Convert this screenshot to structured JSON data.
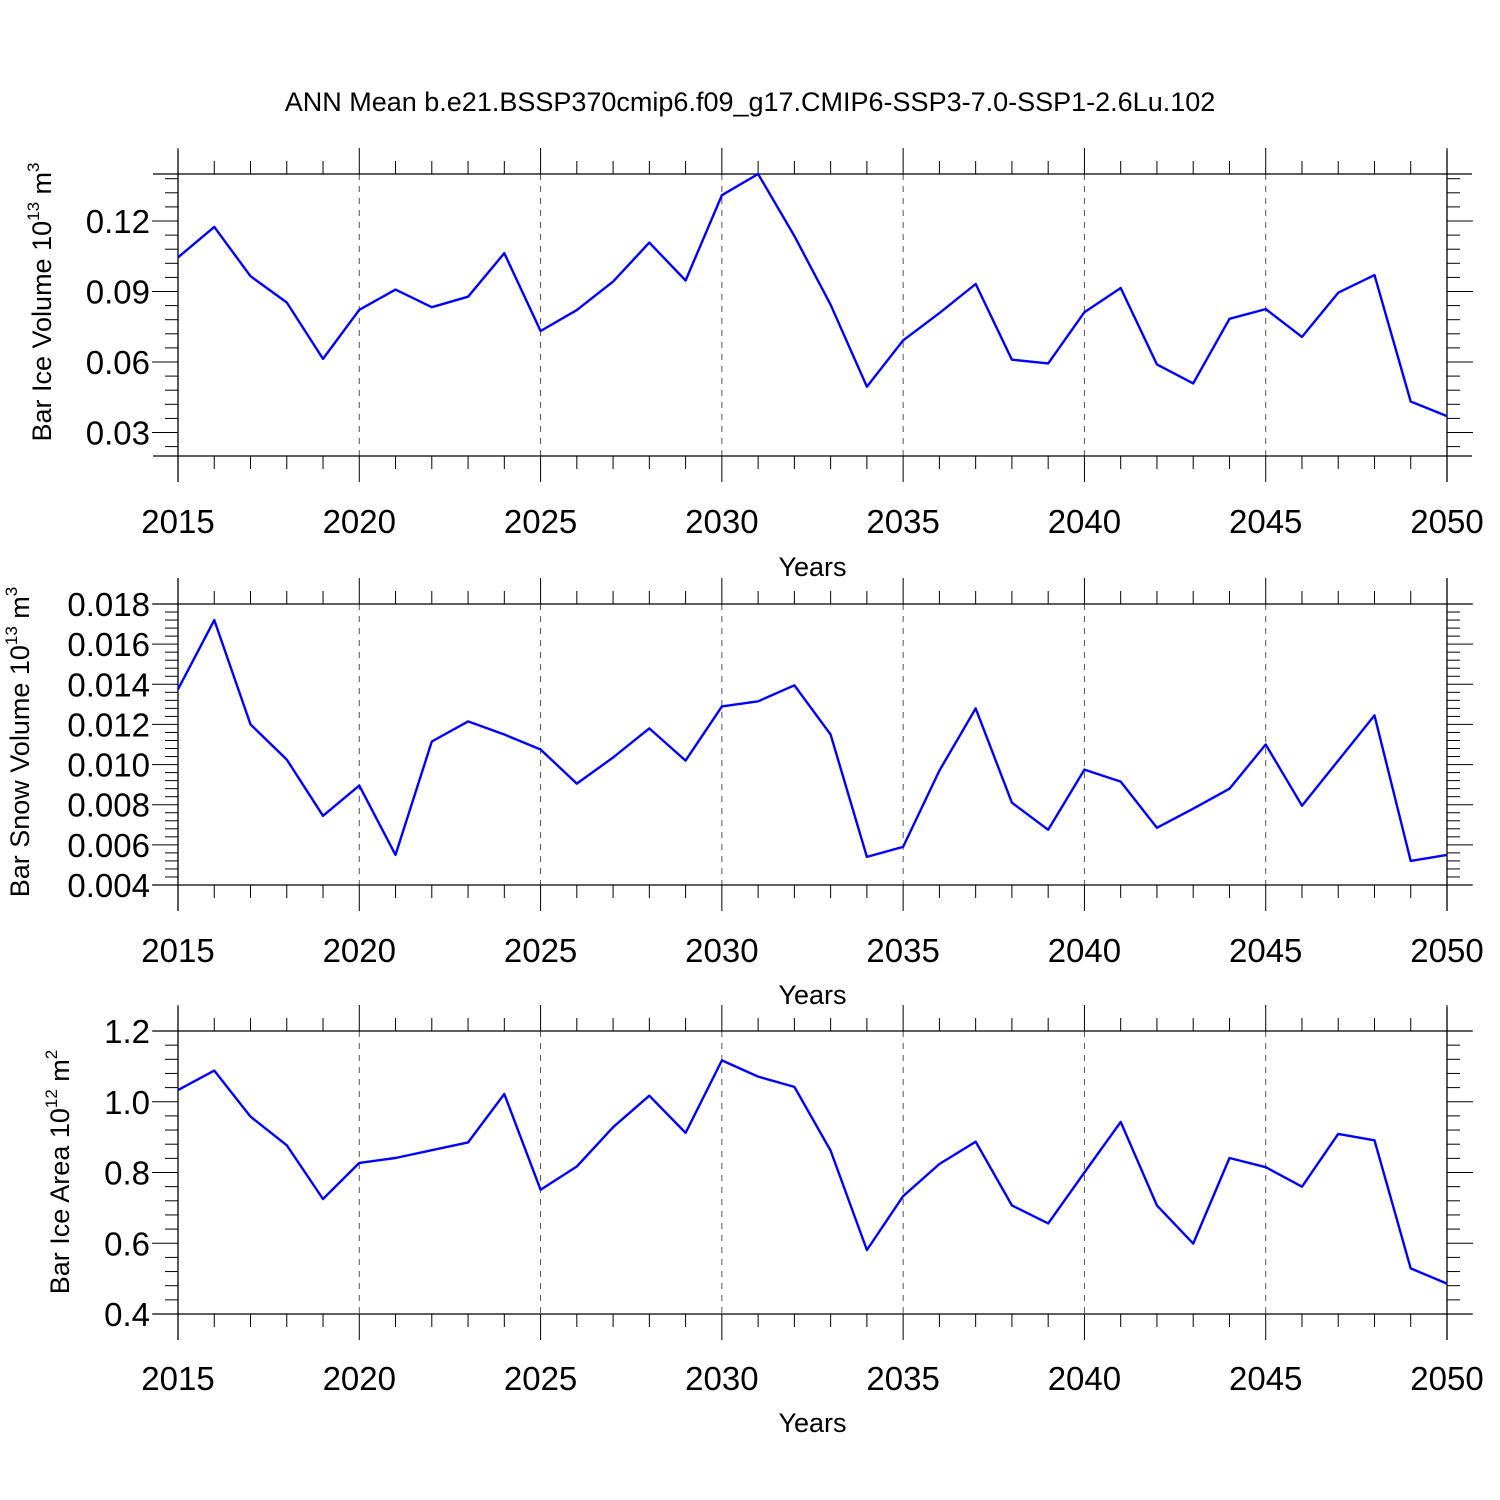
{
  "title": "ANN Mean b.e21.BSSP370cmip6.f09_g17.CMIP6-SSP3-7.0-SSP1-2.6Lu.102",
  "line_color": "#0000ff",
  "chart_data": [
    {
      "type": "line",
      "xlabel": "Years",
      "ylabel": {
        "main": "Bar Ice Volume 10",
        "exp": "13",
        "unit": " m",
        "unit_exp": "3"
      },
      "xlim": [
        2015,
        2050
      ],
      "ylim": [
        0.02,
        0.14
      ],
      "xticks": [
        2015,
        2020,
        2025,
        2030,
        2035,
        2040,
        2045,
        2050
      ],
      "yticks": [
        0.03,
        0.06,
        0.09,
        0.12
      ],
      "ytick_labels": [
        "0.03",
        "0.06",
        "0.09",
        "0.12"
      ],
      "x": [
        2015,
        2016,
        2017,
        2018,
        2019,
        2020,
        2021,
        2022,
        2023,
        2024,
        2025,
        2026,
        2027,
        2028,
        2029,
        2030,
        2031,
        2032,
        2033,
        2034,
        2035,
        2036,
        2037,
        2038,
        2039,
        2040,
        2041,
        2042,
        2043,
        2044,
        2045,
        2046,
        2047,
        2048,
        2049,
        2050
      ],
      "y": [
        0.1045,
        0.1175,
        0.0965,
        0.0853,
        0.0613,
        0.0822,
        0.0908,
        0.0833,
        0.0878,
        0.1063,
        0.0732,
        0.0821,
        0.0942,
        0.1108,
        0.0947,
        0.131,
        0.14,
        0.1136,
        0.0844,
        0.0495,
        0.0692,
        0.0808,
        0.0932,
        0.061,
        0.0594,
        0.0812,
        0.0915,
        0.059,
        0.0509,
        0.0784,
        0.0825,
        0.0707,
        0.0895,
        0.097,
        0.0432,
        0.037
      ]
    },
    {
      "type": "line",
      "xlabel": "Years",
      "ylabel": {
        "main": "Bar Snow Volume 10",
        "exp": "13",
        "unit": " m",
        "unit_exp": "3"
      },
      "xlim": [
        2015,
        2050
      ],
      "ylim": [
        0.004,
        0.018
      ],
      "xticks": [
        2015,
        2020,
        2025,
        2030,
        2035,
        2040,
        2045,
        2050
      ],
      "yticks": [
        0.004,
        0.006,
        0.008,
        0.01,
        0.012,
        0.014,
        0.016,
        0.018
      ],
      "ytick_labels": [
        "0.004",
        "0.006",
        "0.008",
        "0.010",
        "0.012",
        "0.014",
        "0.016",
        "0.018"
      ],
      "x": [
        2015,
        2016,
        2017,
        2018,
        2019,
        2020,
        2021,
        2022,
        2023,
        2024,
        2025,
        2026,
        2027,
        2028,
        2029,
        2030,
        2031,
        2032,
        2033,
        2034,
        2035,
        2036,
        2037,
        2038,
        2039,
        2040,
        2041,
        2042,
        2043,
        2044,
        2045,
        2046,
        2047,
        2048,
        2049,
        2050
      ],
      "y": [
        0.01375,
        0.0172,
        0.012,
        0.01025,
        0.00745,
        0.00895,
        0.0055,
        0.01115,
        0.01215,
        0.0115,
        0.01075,
        0.00905,
        0.01035,
        0.0118,
        0.0102,
        0.0129,
        0.01315,
        0.01395,
        0.0115,
        0.0054,
        0.0059,
        0.0097,
        0.0128,
        0.0081,
        0.00675,
        0.00975,
        0.00915,
        0.00685,
        0.0078,
        0.0088,
        0.011,
        0.00795,
        0.0102,
        0.01245,
        0.0052,
        0.0055
      ]
    },
    {
      "type": "line",
      "xlabel": "Years",
      "ylabel": {
        "main": "Bar Ice Area 10",
        "exp": "12",
        "unit": " m",
        "unit_exp": "2"
      },
      "xlim": [
        2015,
        2050
      ],
      "ylim": [
        0.4,
        1.2
      ],
      "xticks": [
        2015,
        2020,
        2025,
        2030,
        2035,
        2040,
        2045,
        2050
      ],
      "yticks": [
        0.4,
        0.6,
        0.8,
        1.0,
        1.2
      ],
      "ytick_labels": [
        "0.4",
        "0.6",
        "0.8",
        "1.0",
        "1.2"
      ],
      "x": [
        2015,
        2016,
        2017,
        2018,
        2019,
        2020,
        2021,
        2022,
        2023,
        2024,
        2025,
        2026,
        2027,
        2028,
        2029,
        2030,
        2031,
        2032,
        2033,
        2034,
        2035,
        2036,
        2037,
        2038,
        2039,
        2040,
        2041,
        2042,
        2043,
        2044,
        2045,
        2046,
        2047,
        2048,
        2049,
        2050
      ],
      "y": [
        1.033,
        1.088,
        0.958,
        0.877,
        0.725,
        0.827,
        0.841,
        0.863,
        0.885,
        1.022,
        0.751,
        0.817,
        0.928,
        1.017,
        0.912,
        1.117,
        1.071,
        1.042,
        0.862,
        0.581,
        0.733,
        0.824,
        0.887,
        0.707,
        0.656,
        0.8,
        0.943,
        0.707,
        0.599,
        0.841,
        0.815,
        0.76,
        0.909,
        0.891,
        0.529,
        0.486
      ]
    }
  ]
}
